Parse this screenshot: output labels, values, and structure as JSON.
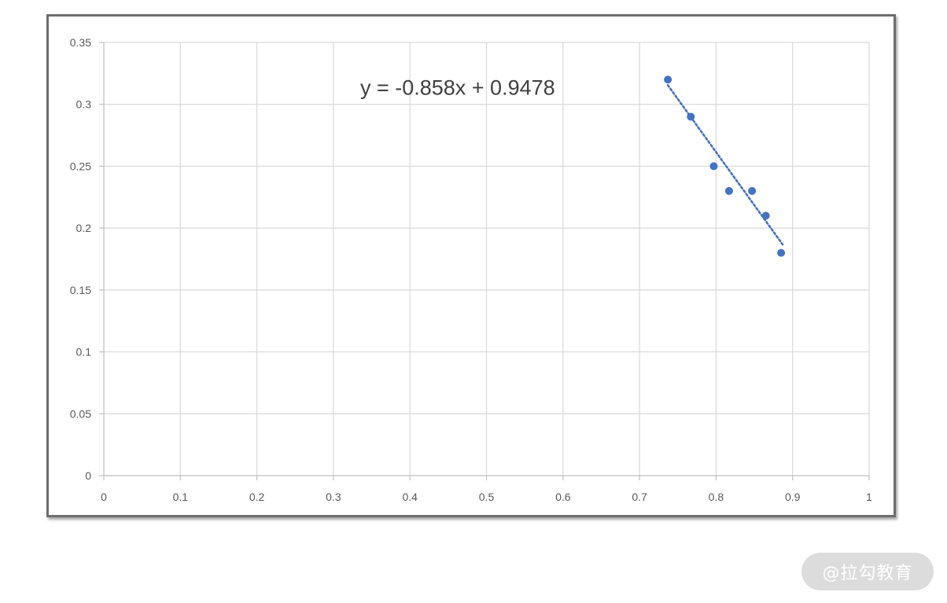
{
  "chart_data": {
    "type": "scatter",
    "title": "",
    "xlabel": "",
    "ylabel": "",
    "xlim": [
      0,
      1
    ],
    "ylim": [
      0,
      0.35
    ],
    "x_ticks": [
      "0",
      "0.1",
      "0.2",
      "0.3",
      "0.4",
      "0.5",
      "0.6",
      "0.7",
      "0.8",
      "0.9",
      "1"
    ],
    "y_ticks": [
      "0",
      "0.05",
      "0.1",
      "0.15",
      "0.2",
      "0.25",
      "0.3",
      "0.35"
    ],
    "grid": true,
    "series": [
      {
        "points": [
          {
            "x": 0.737,
            "y": 0.32
          },
          {
            "x": 0.767,
            "y": 0.29
          },
          {
            "x": 0.797,
            "y": 0.25
          },
          {
            "x": 0.817,
            "y": 0.23
          },
          {
            "x": 0.847,
            "y": 0.23
          },
          {
            "x": 0.865,
            "y": 0.21
          },
          {
            "x": 0.885,
            "y": 0.18
          }
        ],
        "color": "#4472c4"
      }
    ],
    "trendline": {
      "slope": -0.858,
      "intercept": 0.9478,
      "x_range": [
        0.737,
        0.887
      ],
      "equation_label": "y =  -0.858x  + 0.9478",
      "style": "dotted"
    }
  },
  "watermark": "@拉勾教育"
}
